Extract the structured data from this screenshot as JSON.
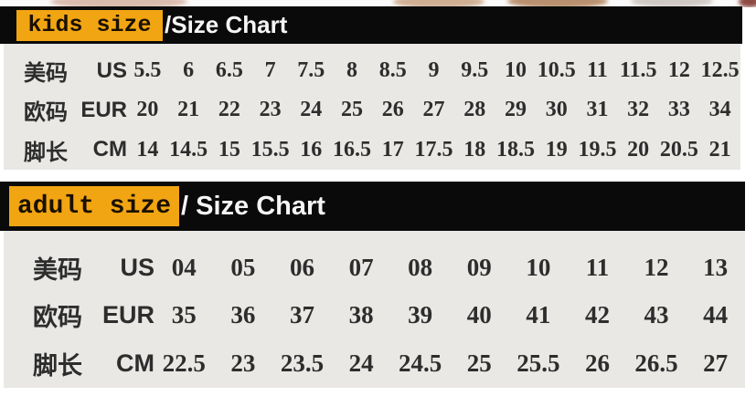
{
  "colors": {
    "highlight": "#F2A512",
    "bar_background": "#0A0A0A",
    "panel_background": "#E9E8E5",
    "header_text": "#F5F5F5",
    "body_text": "#2D2D2D"
  },
  "sections": [
    {
      "id": "kids",
      "header": {
        "highlight_label": "kids size",
        "title": "/Size Chart"
      },
      "rows": [
        {
          "label_cn": "美码",
          "label_en": "US",
          "values": [
            "5.5",
            "6",
            "6.5",
            "7",
            "7.5",
            "8",
            "8.5",
            "9",
            "9.5",
            "10",
            "10.5",
            "11",
            "11.5",
            "12",
            "12.5"
          ]
        },
        {
          "label_cn": "欧码",
          "label_en": "EUR",
          "values": [
            "20",
            "21",
            "22",
            "23",
            "24",
            "25",
            "26",
            "27",
            "28",
            "29",
            "30",
            "31",
            "32",
            "33",
            "34"
          ]
        },
        {
          "label_cn": "脚长",
          "label_en": "CM",
          "values": [
            "14",
            "14.5",
            "15",
            "15.5",
            "16",
            "16.5",
            "17",
            "17.5",
            "18",
            "18.5",
            "19",
            "19.5",
            "20",
            "20.5",
            "21"
          ]
        }
      ]
    },
    {
      "id": "adult",
      "header": {
        "highlight_label": "adult size",
        "title": "/ Size Chart"
      },
      "rows": [
        {
          "label_cn": "美码",
          "label_en": "US",
          "values": [
            "04",
            "05",
            "06",
            "07",
            "08",
            "09",
            "10",
            "11",
            "12",
            "13"
          ]
        },
        {
          "label_cn": "欧码",
          "label_en": "EUR",
          "values": [
            "35",
            "36",
            "37",
            "38",
            "39",
            "40",
            "41",
            "42",
            "43",
            "44"
          ]
        },
        {
          "label_cn": "脚长",
          "label_en": "CM",
          "values": [
            "22.5",
            "23",
            "23.5",
            "24",
            "24.5",
            "25",
            "25.5",
            "26",
            "26.5",
            "27"
          ]
        }
      ]
    }
  ],
  "chart_data": [
    {
      "type": "table",
      "title": "kids size /Size Chart",
      "rows": [
        {
          "label": "美码 US",
          "values": [
            "5.5",
            "6",
            "6.5",
            "7",
            "7.5",
            "8",
            "8.5",
            "9",
            "9.5",
            "10",
            "10.5",
            "11",
            "11.5",
            "12",
            "12.5"
          ]
        },
        {
          "label": "欧码 EUR",
          "values": [
            "20",
            "21",
            "22",
            "23",
            "24",
            "25",
            "26",
            "27",
            "28",
            "29",
            "30",
            "31",
            "32",
            "33",
            "34"
          ]
        },
        {
          "label": "脚长 CM",
          "values": [
            "14",
            "14.5",
            "15",
            "15.5",
            "16",
            "16.5",
            "17",
            "17.5",
            "18",
            "18.5",
            "19",
            "19.5",
            "20",
            "20.5",
            "21"
          ]
        }
      ]
    },
    {
      "type": "table",
      "title": "adult size / Size Chart",
      "rows": [
        {
          "label": "美码 US",
          "values": [
            "04",
            "05",
            "06",
            "07",
            "08",
            "09",
            "10",
            "11",
            "12",
            "13"
          ]
        },
        {
          "label": "欧码 EUR",
          "values": [
            "35",
            "36",
            "37",
            "38",
            "39",
            "40",
            "41",
            "42",
            "43",
            "44"
          ]
        },
        {
          "label": "脚长 CM",
          "values": [
            "22.5",
            "23",
            "23.5",
            "24",
            "24.5",
            "25",
            "25.5",
            "26",
            "26.5",
            "27"
          ]
        }
      ]
    }
  ]
}
